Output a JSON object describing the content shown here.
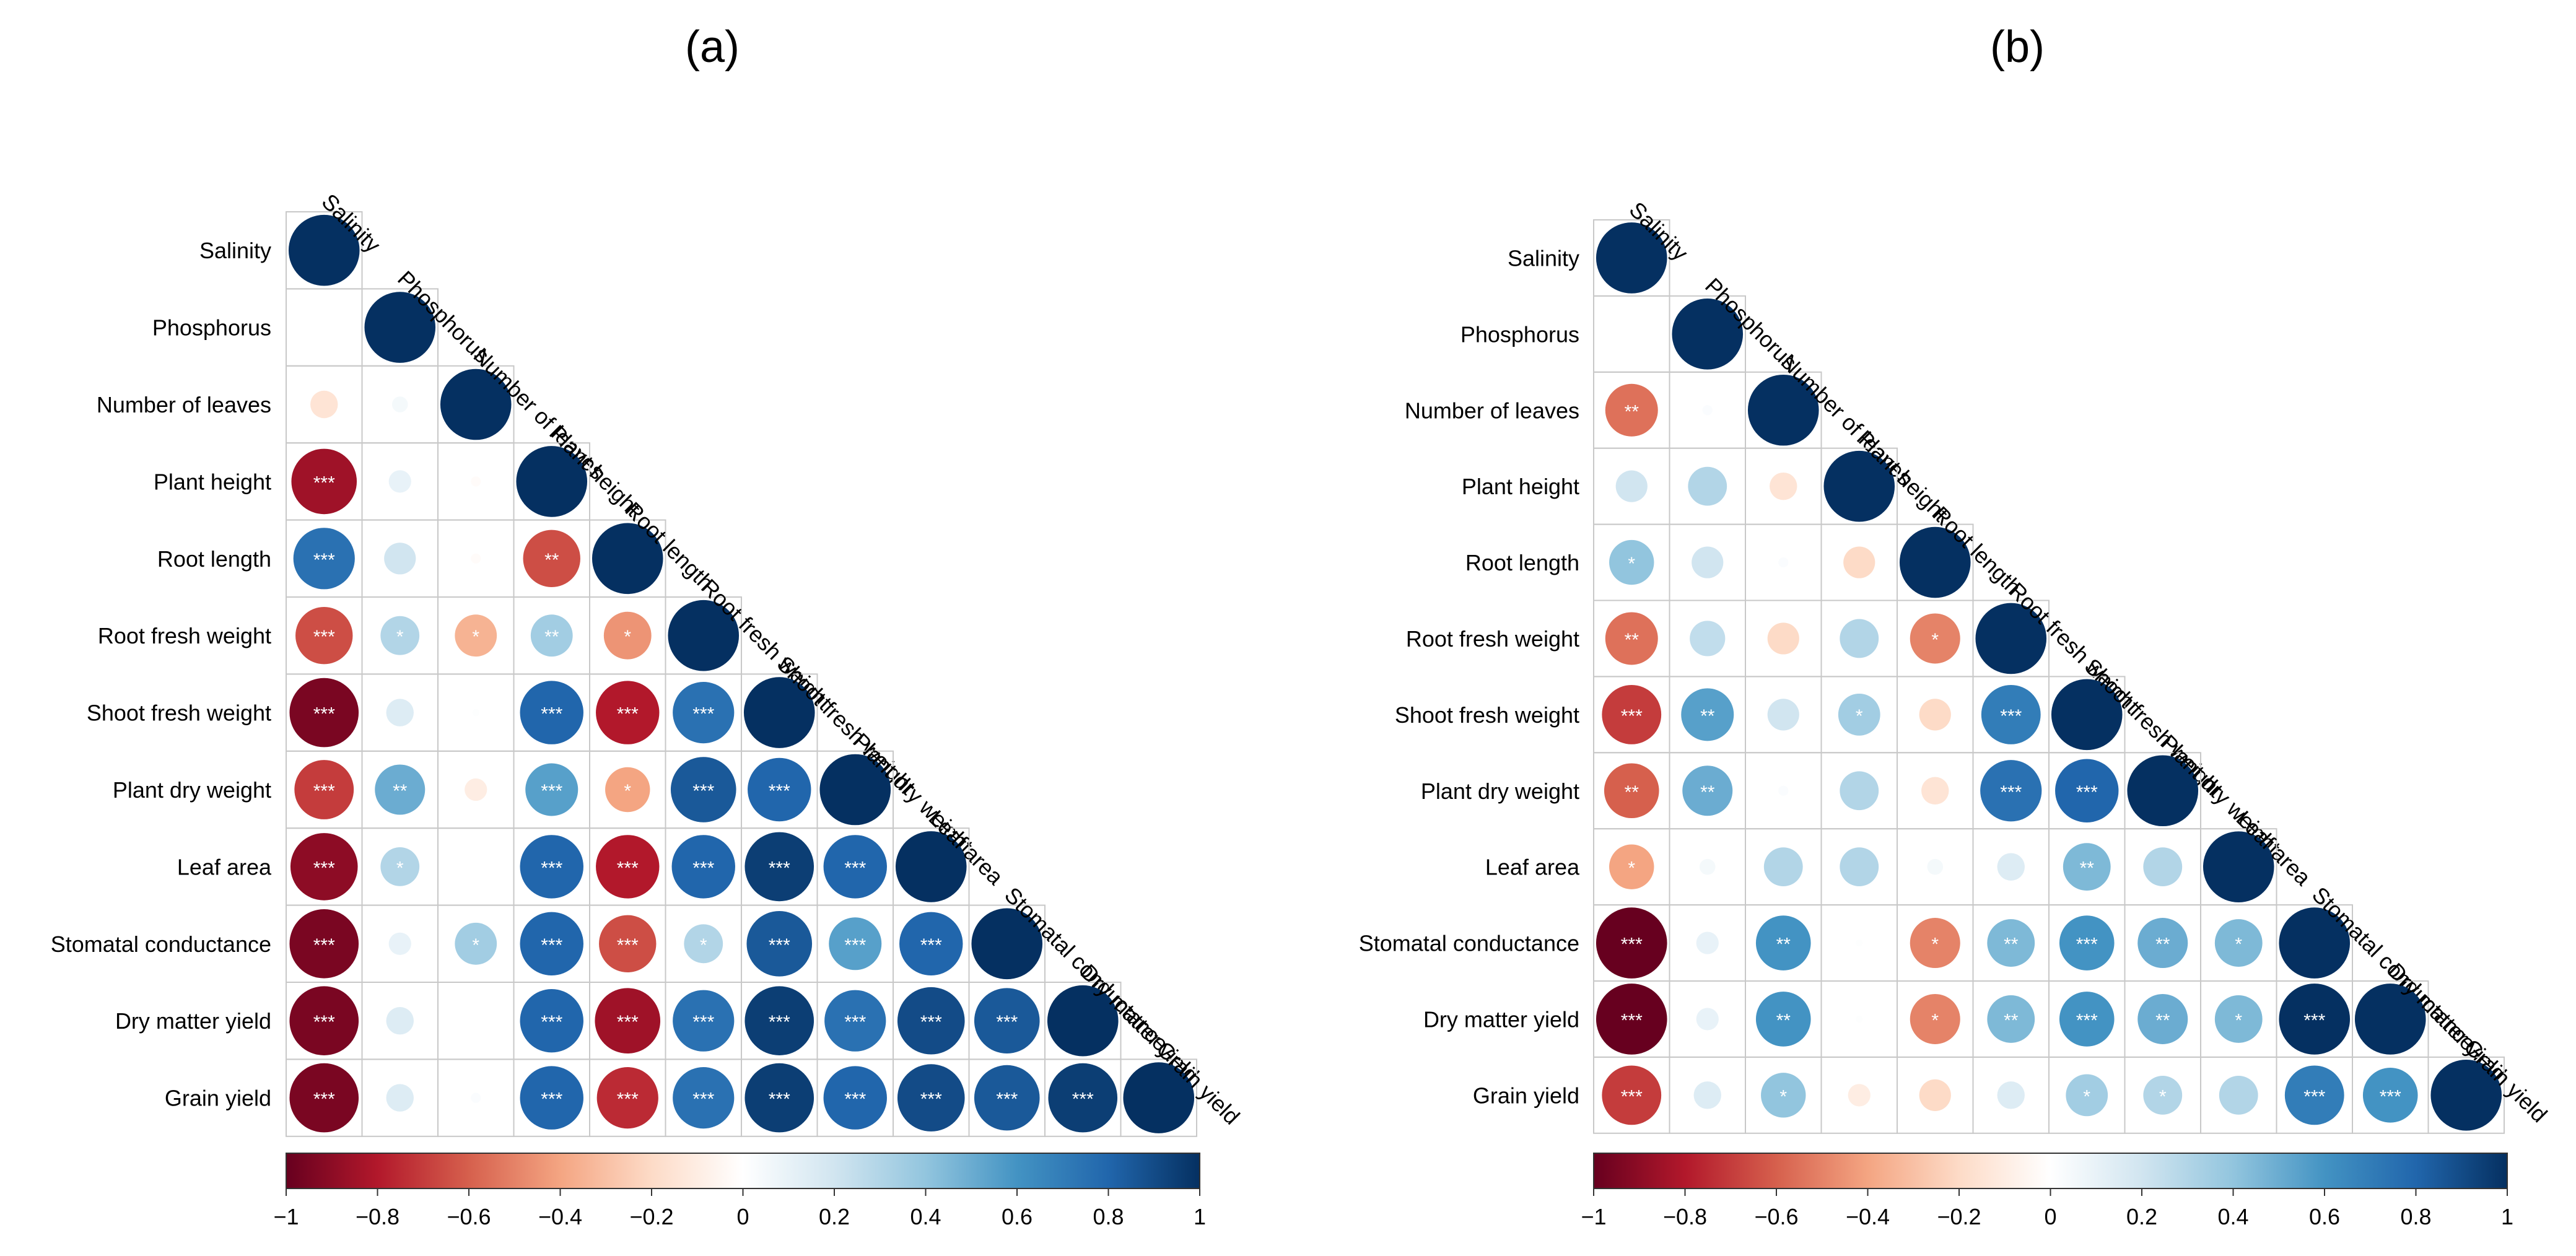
{
  "chart_data": [
    {
      "type": "heatmap",
      "subtype": "correlation-lower-triangle-circles",
      "panel_label": "(a)",
      "variables": [
        "Salinity",
        "Phosphorus",
        "Number of leaves",
        "Plant height",
        "Root length",
        "Root fresh weight",
        "Shoot fresh weight",
        "Plant dry weight",
        "Leaf area",
        "Stomatal conductance",
        "Dry matter yield",
        "Grain yield"
      ],
      "matrix": [
        [
          1
        ],
        [
          0,
          1
        ],
        [
          -0.15,
          0.05,
          1
        ],
        [
          -0.85,
          0.1,
          -0.02,
          1
        ],
        [
          0.75,
          0.2,
          -0.02,
          -0.65,
          1
        ],
        [
          -0.65,
          0.3,
          -0.35,
          0.35,
          -0.45,
          1
        ],
        [
          -0.95,
          0.15,
          0.01,
          0.8,
          -0.8,
          0.75,
          1
        ],
        [
          -0.7,
          0.5,
          -0.1,
          0.55,
          -0.4,
          0.85,
          0.8,
          1
        ],
        [
          -0.9,
          0.3,
          0,
          0.8,
          -0.8,
          0.8,
          0.95,
          0.8,
          1
        ],
        [
          -0.95,
          0.1,
          0.35,
          0.8,
          -0.65,
          0.3,
          0.85,
          0.55,
          0.8,
          1
        ],
        [
          -0.95,
          0.15,
          0,
          0.8,
          -0.85,
          0.75,
          0.95,
          0.75,
          0.9,
          0.85,
          1
        ],
        [
          -0.95,
          0.15,
          0.02,
          0.8,
          -0.75,
          0.75,
          0.95,
          0.8,
          0.9,
          0.85,
          0.95,
          1
        ]
      ],
      "significance": [
        [
          ""
        ],
        [
          "",
          ""
        ],
        [
          "",
          "",
          ""
        ],
        [
          "***",
          "",
          "",
          ""
        ],
        [
          "***",
          "",
          "",
          "**",
          ""
        ],
        [
          "***",
          "*",
          "*",
          "**",
          "*",
          ""
        ],
        [
          "***",
          "",
          "",
          "***",
          "***",
          "***",
          ""
        ],
        [
          "***",
          "**",
          "",
          "***",
          "*",
          "***",
          "***",
          ""
        ],
        [
          "***",
          "*",
          "",
          "***",
          "***",
          "***",
          "***",
          "***",
          ""
        ],
        [
          "***",
          "",
          "*",
          "***",
          "***",
          "*",
          "***",
          "***",
          "***",
          ""
        ],
        [
          "***",
          "",
          "",
          "***",
          "***",
          "***",
          "***",
          "***",
          "***",
          "***",
          ""
        ],
        [
          "***",
          "",
          "",
          "***",
          "***",
          "***",
          "***",
          "***",
          "***",
          "***",
          "***",
          ""
        ]
      ],
      "colorbar": {
        "range": [
          -1,
          1
        ],
        "ticks": [
          "−1",
          "−0.8",
          "−0.6",
          "−0.4",
          "−0.2",
          "0",
          "0.2",
          "0.4",
          "0.6",
          "0.8",
          "1"
        ]
      }
    },
    {
      "type": "heatmap",
      "subtype": "correlation-lower-triangle-circles",
      "panel_label": "(b)",
      "variables": [
        "Salinity",
        "Phosphorus",
        "Number of leaves",
        "Plant height",
        "Root length",
        "Root fresh weight",
        "Shoot fresh weight",
        "Plant dry weight",
        "Leaf area",
        "Stomatal conductance",
        "Dry matter yield",
        "Grain yield"
      ],
      "matrix": [
        [
          1
        ],
        [
          0,
          1
        ],
        [
          -0.55,
          0.02,
          1
        ],
        [
          0.2,
          0.3,
          -0.15,
          1
        ],
        [
          0.4,
          0.2,
          0.02,
          -0.2,
          1
        ],
        [
          -0.55,
          0.25,
          -0.2,
          0.3,
          -0.5,
          1
        ],
        [
          -0.7,
          0.55,
          0.2,
          0.35,
          -0.2,
          0.7,
          1
        ],
        [
          -0.6,
          0.5,
          0.02,
          0.3,
          -0.15,
          0.75,
          0.8,
          1
        ],
        [
          -0.4,
          0.05,
          0.3,
          0.3,
          0.05,
          0.15,
          0.45,
          0.3,
          1
        ],
        [
          -1,
          0.1,
          0.6,
          0.01,
          -0.5,
          0.45,
          0.6,
          0.5,
          0.45,
          1
        ],
        [
          -1,
          0.1,
          0.6,
          0.01,
          -0.5,
          0.45,
          0.6,
          0.5,
          0.45,
          1,
          1
        ],
        [
          -0.7,
          0.15,
          0.4,
          -0.1,
          -0.2,
          0.15,
          0.35,
          0.3,
          0.3,
          0.7,
          0.6,
          1
        ]
      ],
      "significance": [
        [
          ""
        ],
        [
          "",
          ""
        ],
        [
          "**",
          "",
          ""
        ],
        [
          "",
          "",
          "",
          ""
        ],
        [
          "*",
          "",
          "",
          "",
          ""
        ],
        [
          "**",
          "",
          "",
          "",
          "*",
          ""
        ],
        [
          "***",
          "**",
          "",
          "*",
          "",
          "***",
          ""
        ],
        [
          "**",
          "**",
          "",
          "",
          "",
          "***",
          "***",
          ""
        ],
        [
          "*",
          "",
          "",
          "",
          "",
          "",
          "**",
          "",
          ""
        ],
        [
          "***",
          "",
          "**",
          "",
          "*",
          "**",
          "***",
          "**",
          "*",
          ""
        ],
        [
          "***",
          "",
          "**",
          "",
          "*",
          "**",
          "***",
          "**",
          "*",
          "***",
          ""
        ],
        [
          "***",
          "",
          "*",
          "",
          "",
          "",
          "*",
          "*",
          "",
          "***",
          "***",
          ""
        ]
      ],
      "colorbar": {
        "range": [
          -1,
          1
        ],
        "ticks": [
          "−1",
          "−0.8",
          "−0.6",
          "−0.4",
          "−0.2",
          "0",
          "0.2",
          "0.4",
          "0.6",
          "0.8",
          "1"
        ]
      }
    }
  ]
}
